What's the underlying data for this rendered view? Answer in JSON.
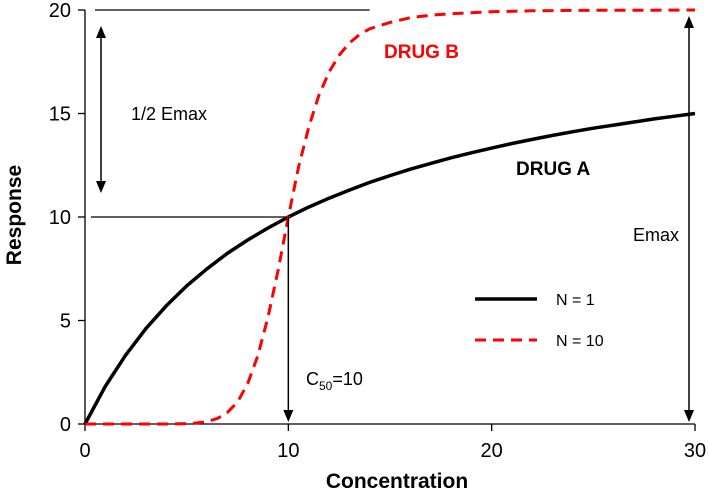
{
  "chart_data": {
    "type": "line",
    "xlabel": "Concentration",
    "ylabel": "Response",
    "xlim": [
      0,
      30
    ],
    "ylim": [
      0,
      20
    ],
    "xticks": [
      0,
      10,
      20,
      30
    ],
    "yticks": [
      0,
      5,
      10,
      15,
      20
    ],
    "grid": false,
    "legend_position": "center-right",
    "series": [
      {
        "name": "N = 1",
        "color": "#000000",
        "dash": "solid",
        "x": [
          0,
          1,
          2,
          3,
          4,
          5,
          6,
          7,
          8,
          9,
          10,
          11,
          12,
          13,
          14,
          15,
          16,
          17,
          18,
          19,
          20,
          21,
          22,
          23,
          24,
          25,
          26,
          27,
          28,
          29,
          30
        ],
        "y": [
          0,
          1.82,
          3.33,
          4.62,
          5.71,
          6.67,
          7.5,
          8.24,
          8.89,
          9.47,
          10,
          10.48,
          10.91,
          11.3,
          11.67,
          12,
          12.31,
          12.59,
          12.86,
          13.1,
          13.33,
          13.55,
          13.75,
          13.94,
          14.12,
          14.29,
          14.44,
          14.59,
          14.74,
          14.87,
          15
        ]
      },
      {
        "name": "N = 10",
        "color": "#ff0000",
        "dash": "dashed",
        "x": [
          0,
          1,
          2,
          3,
          4,
          5,
          5.5,
          6,
          6.5,
          7,
          7.5,
          8,
          8.5,
          9,
          9.5,
          10,
          10.5,
          11,
          11.5,
          12,
          12.5,
          13,
          13.5,
          14,
          15,
          16,
          17,
          18,
          20,
          22,
          24,
          26,
          28,
          30
        ],
        "y": [
          0,
          0,
          0,
          0,
          0.002,
          0.02,
          0.05,
          0.12,
          0.26,
          0.55,
          1.06,
          1.95,
          3.3,
          5.16,
          7.45,
          10,
          12.4,
          14.33,
          15.87,
          17,
          17.82,
          18.4,
          18.81,
          19.09,
          19.4,
          19.63,
          19.75,
          19.82,
          19.92,
          19.96,
          19.98,
          19.99,
          19.99,
          20
        ]
      }
    ],
    "annotations": {
      "drug_b": "DRUG B",
      "drug_a": "DRUG A",
      "half_emax": "1/2 Emax",
      "emax": "Emax",
      "c50_main": "C",
      "c50_sub": "50",
      "c50_value": "=10"
    }
  }
}
